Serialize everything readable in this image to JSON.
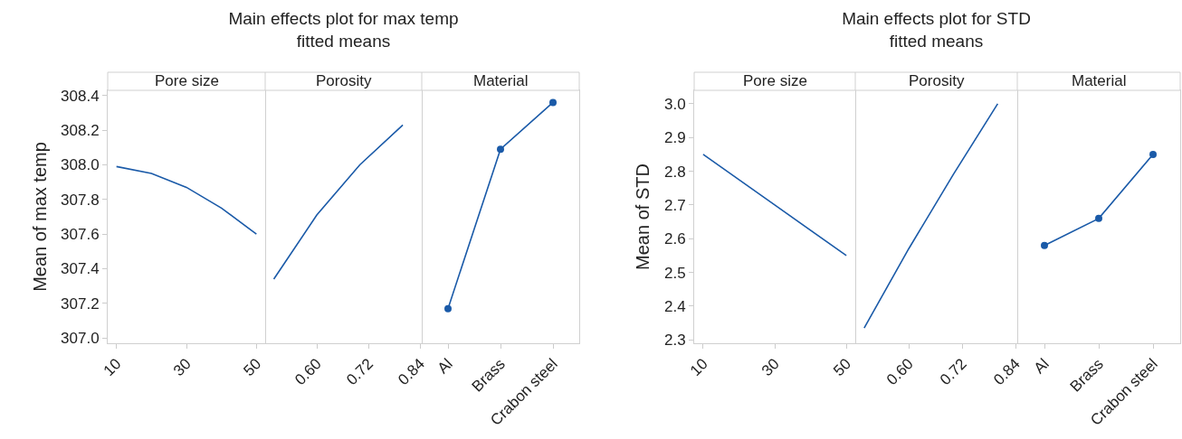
{
  "chart_data": [
    {
      "type": "line",
      "ylabel": "Mean of max temp",
      "xlabel": "Pore size",
      "x": [
        10,
        20,
        30,
        40,
        50
      ],
      "values": [
        307.99,
        307.95,
        307.87,
        307.75,
        307.6
      ],
      "color": "#1a5aa8",
      "marker": "none",
      "xlim": [
        7.5,
        52.5
      ],
      "xticks": [
        10,
        30,
        50
      ],
      "ylim": [
        306.97,
        308.43
      ],
      "yticks": [
        {
          "value": 307,
          "label": "307.0"
        },
        307.2,
        307.4,
        307.6,
        307.8,
        {
          "value": 308,
          "label": "308.0"
        },
        308.2,
        308.4
      ]
    },
    {
      "type": "line",
      "title": "Main effects plot for max temp",
      "subtitle": "fitted means",
      "xlabel": "Porosity",
      "x": [
        0.5,
        0.6,
        0.7,
        0.8
      ],
      "values": [
        307.34,
        307.71,
        308.0,
        308.23
      ],
      "color": "#1a5aa8",
      "marker": "none",
      "xlim": [
        0.48,
        0.844
      ],
      "xticks": [
        {
          "value": 0.6,
          "label": "0.60"
        },
        0.72,
        0.84
      ],
      "ylim": [
        306.97,
        308.43
      ],
      "tick_labels": "x"
    },
    {
      "type": "line",
      "xlabel": "Material",
      "categories": [
        "Al",
        "Brass",
        "Crabon steel"
      ],
      "values": [
        307.17,
        308.09,
        308.36
      ],
      "color": "#1a5aa8",
      "marker": "circle",
      "ylim": [
        306.97,
        308.43
      ],
      "tick_labels": "x"
    },
    {
      "type": "line",
      "ylabel": "Mean of STD",
      "xlabel": "Pore size",
      "x": [
        10,
        30,
        50
      ],
      "values": [
        2.85,
        2.7,
        2.55
      ],
      "color": "#1a5aa8",
      "marker": "none",
      "xlim": [
        7.5,
        52.5
      ],
      "xticks": [
        10,
        30,
        50
      ],
      "ylim": [
        2.29,
        3.04
      ],
      "yticks": [
        2.3,
        2.4,
        2.5,
        2.6,
        2.7,
        2.8,
        2.9,
        {
          "value": 3,
          "label": "3.0"
        }
      ]
    },
    {
      "type": "line",
      "title": "Main effects plot for STD",
      "subtitle": "fitted means",
      "xlabel": "Porosity",
      "x": [
        0.5,
        0.6,
        0.7,
        0.8
      ],
      "values": [
        2.335,
        2.57,
        2.79,
        3.0
      ],
      "color": "#1a5aa8",
      "marker": "none",
      "xlim": [
        0.48,
        0.844
      ],
      "xticks": [
        {
          "value": 0.6,
          "label": "0.60"
        },
        0.72,
        0.84
      ],
      "ylim": [
        2.29,
        3.04
      ],
      "tick_labels": "x"
    },
    {
      "type": "line",
      "xlabel": "Material",
      "categories": [
        "Al",
        "Brass",
        "Crabon steel"
      ],
      "values": [
        2.58,
        2.66,
        2.85
      ],
      "color": "#1a5aa8",
      "marker": "circle",
      "ylim": [
        2.29,
        3.04
      ],
      "tick_labels": "x"
    }
  ]
}
